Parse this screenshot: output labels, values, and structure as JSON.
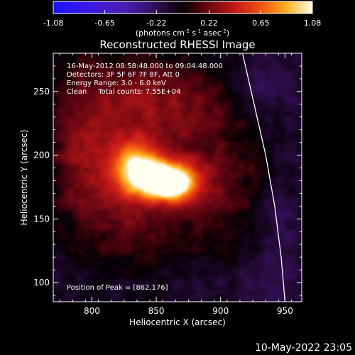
{
  "chart_data": {
    "type": "heatmap",
    "title": "Reconstructed RHESSI Image",
    "xlabel": "Heliocentric X (arcsec)",
    "ylabel": "Heliocentric Y (arcsec)",
    "xlim": [
      770,
      963
    ],
    "ylim": [
      85,
      280
    ],
    "xticks": [
      800,
      850,
      900,
      950
    ],
    "yticks": [
      100,
      150,
      200,
      250
    ],
    "colorbar": {
      "min": -1.08,
      "max": 1.08,
      "ticks": [
        "-1.08",
        "-0.65",
        "-0.22",
        "0.22",
        "0.65",
        "1.08"
      ],
      "unit_prefix": "(photons cm",
      "unit_sup1": "-2",
      "unit_mid": " s",
      "unit_sup2": "-1",
      "unit_mid2": " asec",
      "unit_sup3": "-2",
      "unit_suffix": ")"
    },
    "annotations": [
      "16-May-2012 08:58:48.000 to 09:04:48.000",
      "Detectors: 3F 5F 6F 7F 8F, Att 0",
      "Energy Range: 3.0 - 6.0 keV",
      "Clean     Total counts: 7.55E+04"
    ],
    "peak_label": "Position of Peak = [862,176]",
    "peak": [
      862,
      176
    ],
    "sources": [
      {
        "x": 855,
        "y": 180,
        "sx": 20,
        "sy": 11,
        "amp": 1.0
      },
      {
        "x": 862,
        "y": 176,
        "sx": 11,
        "sy": 8,
        "amp": 0.3
      },
      {
        "x": 835,
        "y": 193,
        "sx": 11,
        "sy": 13,
        "amp": 0.5
      },
      {
        "x": 828,
        "y": 215,
        "sx": 40,
        "sy": 45,
        "amp": 0.33
      },
      {
        "x": 795,
        "y": 190,
        "sx": 18,
        "sy": 28,
        "amp": 0.18
      },
      {
        "x": 830,
        "y": 140,
        "sx": 28,
        "sy": 22,
        "amp": 0.15
      },
      {
        "x": 905,
        "y": 175,
        "sx": 25,
        "sy": 55,
        "amp": 0.17
      },
      {
        "x": 870,
        "y": 245,
        "sx": 35,
        "sy": 20,
        "amp": 0.12
      },
      {
        "x": 790,
        "y": 255,
        "sx": 18,
        "sy": 18,
        "amp": 0.1
      },
      {
        "x": 930,
        "y": 255,
        "sx": 18,
        "sy": 20,
        "amp": -0.15
      },
      {
        "x": 945,
        "y": 135,
        "sx": 12,
        "sy": 50,
        "amp": -0.12
      },
      {
        "x": 905,
        "y": 100,
        "sx": 25,
        "sy": 15,
        "amp": -0.1
      }
    ],
    "limb": [
      [
        917,
        280
      ],
      [
        926,
        240
      ],
      [
        935,
        200
      ],
      [
        942,
        160
      ],
      [
        947,
        120
      ],
      [
        950,
        85
      ]
    ]
  },
  "footer": {
    "date": "10-May-2022 23:05"
  }
}
